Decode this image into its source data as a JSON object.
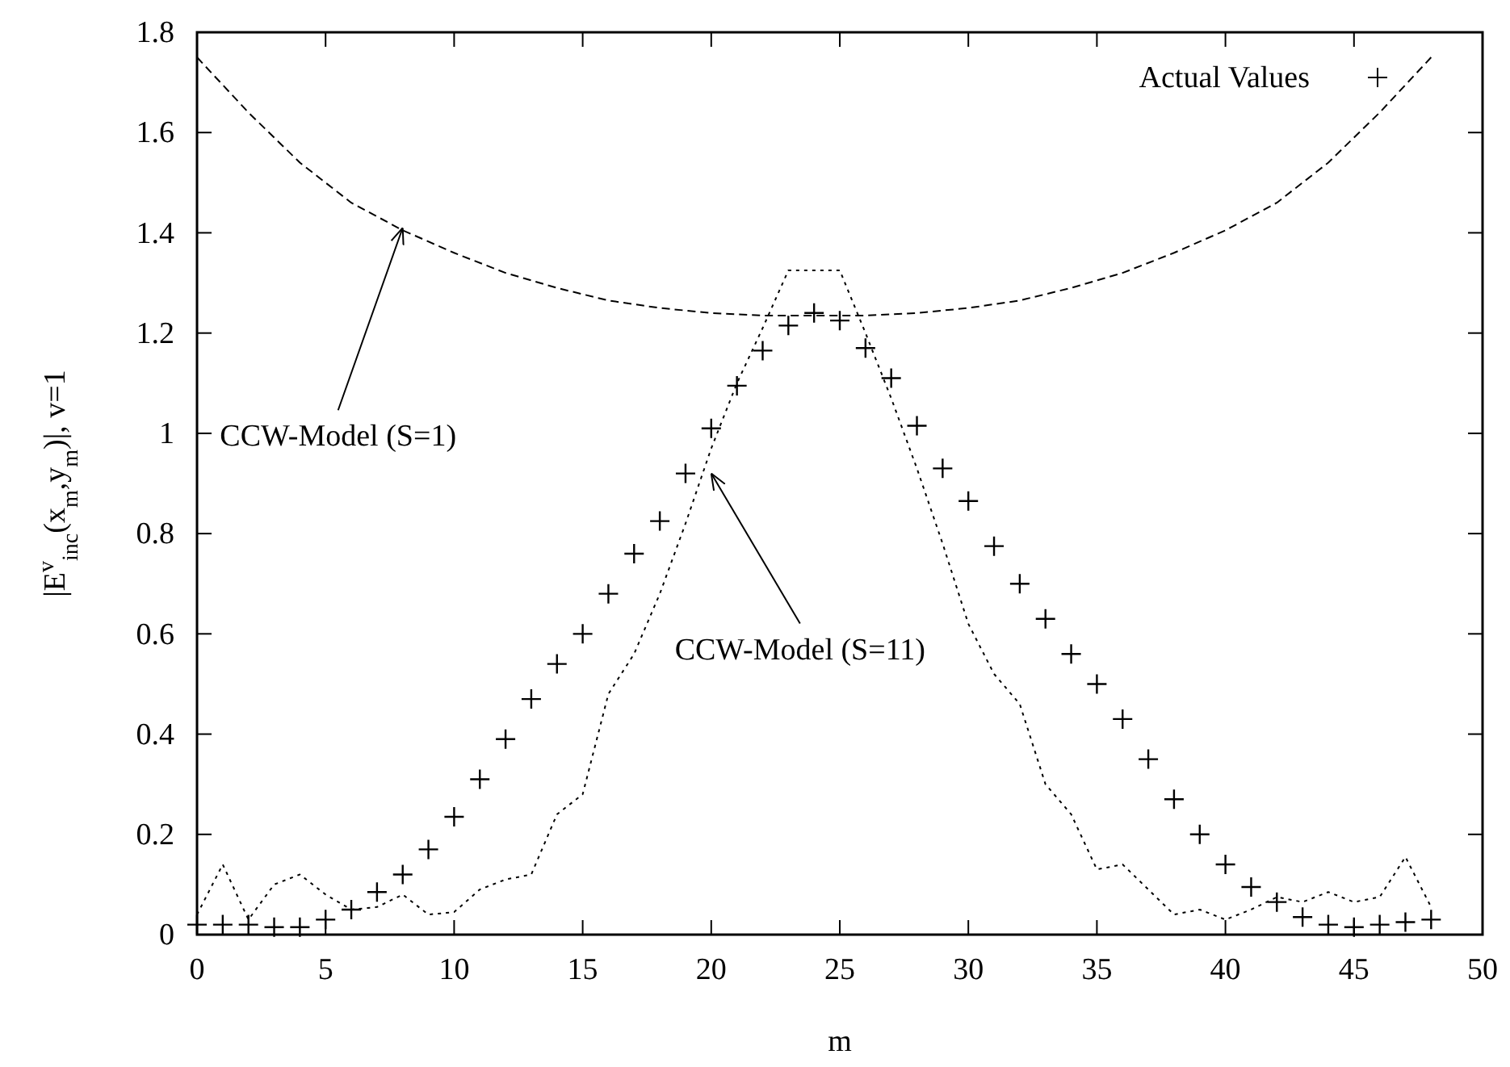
{
  "chart_data": {
    "type": "scatter",
    "xlabel": "m",
    "ylabel": "|E$^{v}$$_{inc}$(x$_{m}$,y$_{m}$)|, v=1",
    "xlim": [
      0,
      50
    ],
    "ylim": [
      0,
      1.8
    ],
    "xticks": [
      0,
      5,
      10,
      15,
      20,
      25,
      30,
      35,
      40,
      45,
      50
    ],
    "yticks": [
      0,
      0.2,
      0.4,
      0.6,
      0.8,
      1,
      1.2,
      1.4,
      1.6,
      1.8
    ],
    "grid": false,
    "legend": "top right",
    "series": [
      {
        "name": "Actual Values",
        "marker": "cross",
        "color": "#000000",
        "x": [
          0,
          1,
          2,
          3,
          4,
          5,
          6,
          7,
          8,
          9,
          10,
          11,
          12,
          13,
          14,
          15,
          16,
          17,
          18,
          19,
          20,
          21,
          22,
          23,
          24,
          25,
          26,
          27,
          28,
          29,
          30,
          31,
          32,
          33,
          34,
          35,
          36,
          37,
          38,
          39,
          40,
          41,
          42,
          43,
          44,
          45,
          46,
          47,
          48
        ],
        "values": [
          0.02,
          0.02,
          0.02,
          0.015,
          0.015,
          0.03,
          0.05,
          0.085,
          0.12,
          0.17,
          0.235,
          0.31,
          0.39,
          0.47,
          0.54,
          0.6,
          0.68,
          0.76,
          0.825,
          0.92,
          1.01,
          1.095,
          1.165,
          1.215,
          1.24,
          1.225,
          1.17,
          1.11,
          1.015,
          0.93,
          0.865,
          0.775,
          0.7,
          0.63,
          0.56,
          0.5,
          0.43,
          0.35,
          0.27,
          0.2,
          0.14,
          0.095,
          0.065,
          0.035,
          0.02,
          0.015,
          0.02,
          0.025,
          0.03
        ]
      },
      {
        "type": "line",
        "line_style": "dashed",
        "marker": "none",
        "color": "#000000",
        "x": [
          0,
          2,
          4,
          6,
          8,
          10,
          12,
          14,
          16,
          18,
          20,
          22,
          24,
          26,
          28,
          30,
          32,
          34,
          36,
          38,
          40,
          42,
          44,
          46,
          48
        ],
        "values": [
          1.75,
          1.64,
          1.54,
          1.46,
          1.405,
          1.36,
          1.32,
          1.29,
          1.265,
          1.25,
          1.24,
          1.235,
          1.235,
          1.235,
          1.24,
          1.25,
          1.265,
          1.29,
          1.32,
          1.36,
          1.405,
          1.46,
          1.54,
          1.64,
          1.75
        ]
      },
      {
        "type": "line",
        "line_style": "dotted",
        "marker": "none",
        "color": "#000000",
        "x": [
          0,
          1,
          2,
          3,
          4,
          5,
          6,
          7,
          8,
          9,
          10,
          11,
          12,
          13,
          14,
          15,
          16,
          17,
          18,
          19,
          20,
          21,
          22,
          23,
          24,
          25,
          26,
          27,
          28,
          29,
          30,
          31,
          32,
          33,
          34,
          35,
          36,
          37,
          38,
          39,
          40,
          41,
          42,
          43,
          44,
          45,
          46,
          47,
          48
        ],
        "values": [
          0.04,
          0.14,
          0.03,
          0.1,
          0.12,
          0.08,
          0.05,
          0.055,
          0.08,
          0.04,
          0.045,
          0.09,
          0.11,
          0.12,
          0.24,
          0.28,
          0.48,
          0.56,
          0.68,
          0.82,
          0.97,
          1.1,
          1.21,
          1.325,
          1.325,
          1.325,
          1.2,
          1.07,
          0.93,
          0.78,
          0.62,
          0.52,
          0.46,
          0.3,
          0.24,
          0.13,
          0.14,
          0.09,
          0.04,
          0.05,
          0.03,
          0.05,
          0.075,
          0.065,
          0.085,
          0.065,
          0.075,
          0.155,
          0.055
        ]
      }
    ],
    "annotations": [
      {
        "text": "CCW-Model (S=1)",
        "x": 8,
        "y": 1.41
      },
      {
        "text": "CCW-Model (S=11)",
        "x": 20,
        "y": 0.92
      }
    ]
  }
}
